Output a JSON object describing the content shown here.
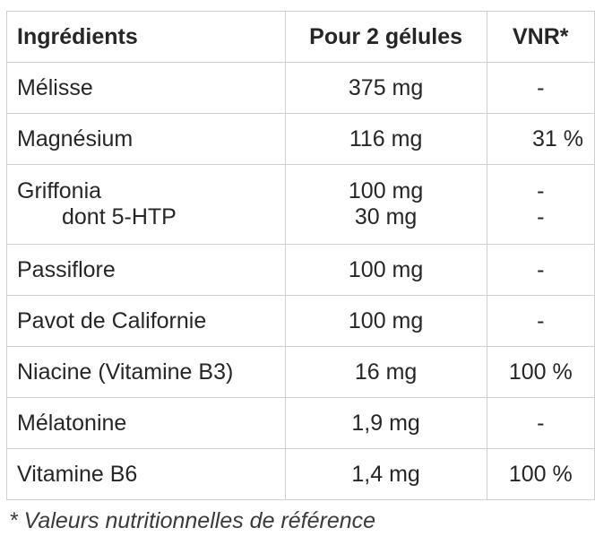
{
  "table": {
    "headers": {
      "ingredient": "Ingrédients",
      "amount": "Pour 2 gélules",
      "vnr": "VNR*"
    },
    "rows": [
      {
        "ingredient": "Mélisse",
        "amount": "375 mg",
        "vnr": "-"
      },
      {
        "ingredient": "Magnésium",
        "amount": "116 mg",
        "vnr": "31 %"
      },
      {
        "ingredient": "Griffonia",
        "amount": "100 mg",
        "vnr": "-",
        "sub_ingredient": "dont 5-HTP",
        "sub_amount": "30 mg",
        "sub_vnr": "-"
      },
      {
        "ingredient": "Passiflore",
        "amount": "100 mg",
        "vnr": "-"
      },
      {
        "ingredient": "Pavot de Californie",
        "amount": "100 mg",
        "vnr": "-"
      },
      {
        "ingredient": "Niacine (Vitamine B3)",
        "amount": "16 mg",
        "vnr": "100 %"
      },
      {
        "ingredient": "Mélatonine",
        "amount": "1,9 mg",
        "vnr": "-"
      },
      {
        "ingredient": "Vitamine B6",
        "amount": "1,4 mg",
        "vnr": "100 %"
      }
    ]
  },
  "footnote": "* Valeurs nutritionnelles de référence"
}
